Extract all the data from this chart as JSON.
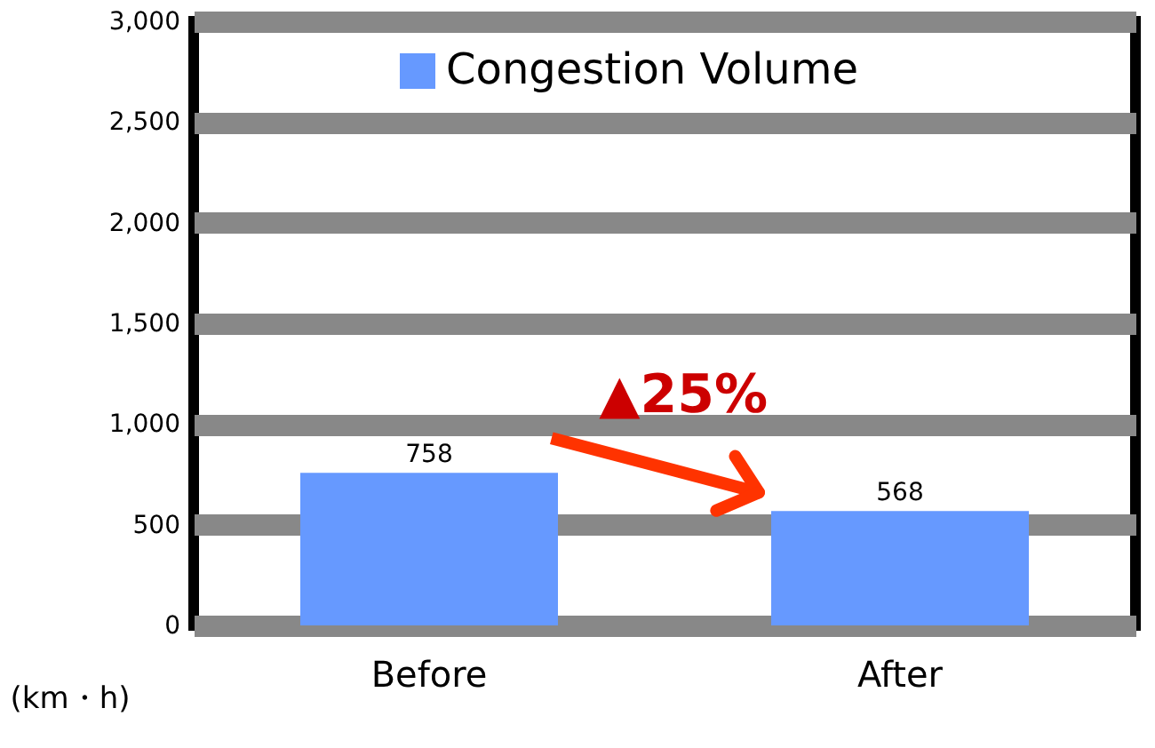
{
  "chart_data": {
    "type": "bar",
    "categories": [
      "Before",
      "After"
    ],
    "series": [
      {
        "name": "Congestion Volume",
        "color": "#6699ff",
        "values": [
          758,
          568
        ]
      }
    ],
    "ylim": [
      0,
      3000
    ],
    "yticks": [
      {
        "value": 0,
        "label": "0"
      },
      {
        "value": 500,
        "label": "500"
      },
      {
        "value": 1000,
        "label": "1,000"
      },
      {
        "value": 1500,
        "label": "1,500"
      },
      {
        "value": 2000,
        "label": "2,000"
      },
      {
        "value": 2500,
        "label": "2,500"
      },
      {
        "value": 3000,
        "label": "3,000"
      }
    ],
    "ylabel": "(km・h)",
    "grid": "y",
    "legend": "top",
    "data_labels": true,
    "annotations": [
      "▲25%"
    ]
  }
}
